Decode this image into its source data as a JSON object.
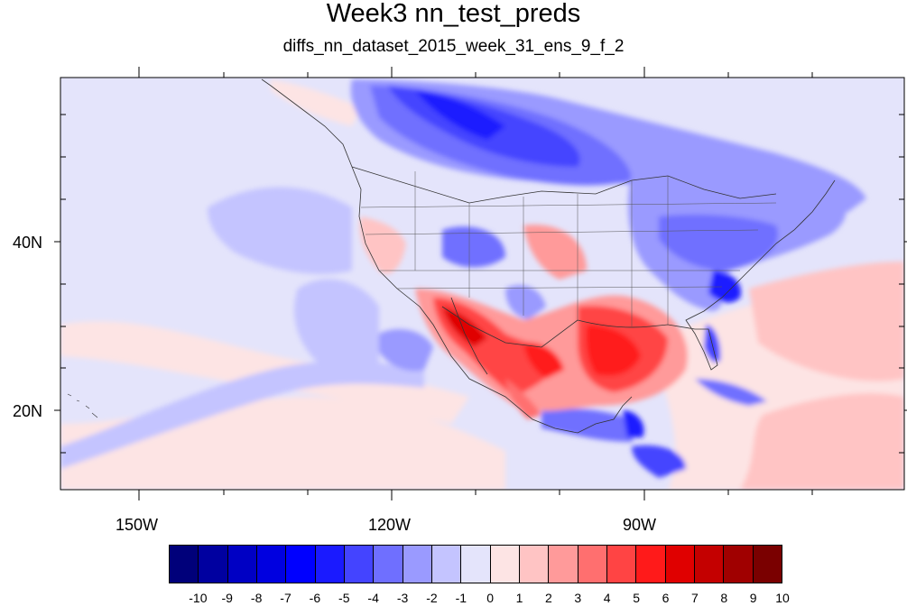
{
  "title": "Week3 nn_test_preds",
  "subtitle": "diffs_nn_dataset_2015_week_31_ens_9_f_2",
  "map": {
    "lon_labels": [
      "150W",
      "120W",
      "90W"
    ],
    "lat_labels": [
      "40N",
      "20N"
    ],
    "extent": {
      "lon": [
        -159,
        -61
      ],
      "lat": [
        11,
        60
      ]
    }
  },
  "colorbar": {
    "labels": [
      "-10",
      "-9",
      "-8",
      "-7",
      "-6",
      "-5",
      "-4",
      "-3",
      "-2",
      "-1",
      "0",
      "1",
      "2",
      "3",
      "4",
      "5",
      "6",
      "7",
      "8",
      "9",
      "10"
    ],
    "colors": [
      "#00007a",
      "#0000a0",
      "#0000c4",
      "#0000e0",
      "#0000ff",
      "#1a1aff",
      "#4444ff",
      "#6f6fff",
      "#9a9aff",
      "#c4c4ff",
      "#e4e4fb",
      "#fde4e4",
      "#ffc4c4",
      "#ff9a9a",
      "#ff6f6f",
      "#ff4444",
      "#ff1a1a",
      "#e00000",
      "#c40000",
      "#a00000",
      "#7a0000"
    ]
  }
}
